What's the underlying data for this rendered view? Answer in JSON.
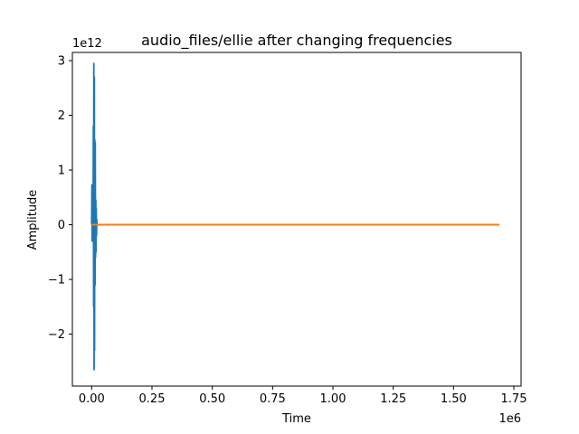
{
  "chart_data": {
    "type": "line",
    "title": "audio_files/ellie after changing frequencies",
    "xlabel": "Time",
    "ylabel": "Amplitude",
    "x_offset_label": "1e6",
    "y_offset_label": "1e12",
    "xlim": [
      -80000,
      1780000
    ],
    "ylim": [
      -2950000000000.0,
      3150000000000.0
    ],
    "xticks": [
      0,
      250000,
      500000,
      750000,
      1000000,
      1250000,
      1500000,
      1750000
    ],
    "xtick_labels": [
      "0.00",
      "0.25",
      "0.50",
      "0.75",
      "1.00",
      "1.25",
      "1.50",
      "1.75"
    ],
    "yticks": [
      -2000000000000.0,
      -1000000000000.0,
      0,
      1000000000000.0,
      2000000000000.0,
      3000000000000.0
    ],
    "ytick_labels": [
      "−2",
      "−1",
      "0",
      "1",
      "2",
      "3"
    ],
    "grid": false,
    "series": [
      {
        "color": "#1f77b4",
        "x": [
          0,
          1000,
          2000,
          3000,
          4000,
          5000,
          6000,
          7000,
          8000,
          9000,
          10000,
          11000,
          12000,
          13000,
          14000,
          15000,
          16000,
          17000,
          18000,
          19000,
          20000,
          21000,
          22000,
          30000,
          1690000
        ],
        "y": [
          0,
          730000000000.0,
          -300000000000.0,
          650000000000.0,
          -240000000000.0,
          400000000000.0,
          -160000000000.0,
          1800000000000.0,
          -1500000000000.0,
          2950000000000.0,
          -2650000000000.0,
          2700000000000.0,
          -2300000000000.0,
          1550000000000.0,
          -1100000000000.0,
          1500000000000.0,
          -600000000000.0,
          450000000000.0,
          -500000000000.0,
          300000000000.0,
          -200000000000.0,
          100000000000.0,
          0,
          0,
          0
        ]
      },
      {
        "color": "#ff7f0e",
        "x": [
          0,
          1690000
        ],
        "y": [
          0,
          0
        ]
      }
    ]
  }
}
